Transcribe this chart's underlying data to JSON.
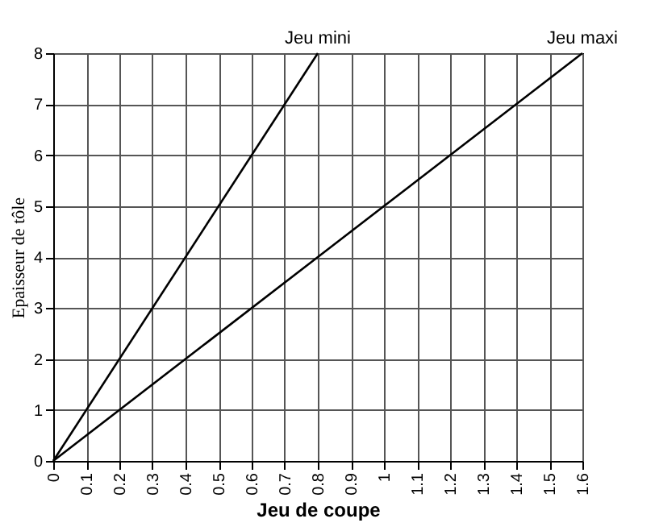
{
  "chart_data": {
    "type": "line",
    "xlabel": "Jeu de coupe",
    "ylabel": "Epaisseur de tôle",
    "x": [
      0,
      0.8,
      1.6
    ],
    "series": [
      {
        "name": "Jeu mini",
        "color": "#000000",
        "values": [
          0,
          8,
          null
        ]
      },
      {
        "name": "Jeu maxi",
        "color": "#000000",
        "values": [
          0,
          4,
          8
        ]
      }
    ],
    "xlim": [
      0,
      1.6
    ],
    "xticks": [
      0,
      0.1,
      0.2,
      0.3,
      0.4,
      0.5,
      0.6,
      0.7,
      0.8,
      0.9,
      1,
      1.1,
      1.2,
      1.3,
      1.4,
      1.5,
      1.6
    ],
    "ylim": [
      0,
      8
    ],
    "yticks": [
      0,
      1,
      2,
      3,
      4,
      5,
      6,
      7,
      8
    ],
    "grid": true,
    "marker": "none",
    "line_style": "solid"
  }
}
